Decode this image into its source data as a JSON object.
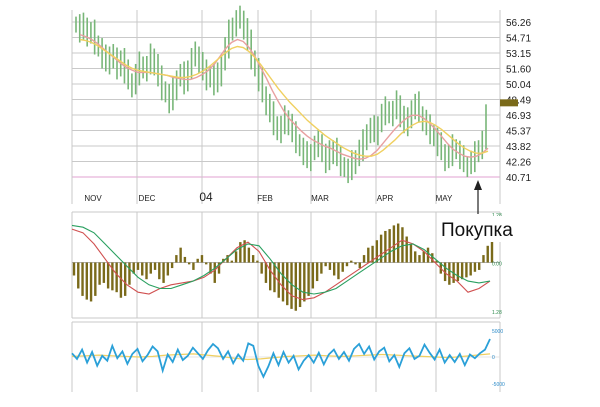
{
  "colors": {
    "price_bar": "#78b678",
    "ma_fast": "#e8a0a0",
    "ma_slow": "#f0d060",
    "macd_hist": "#7a6a1a",
    "macd_line": "#d05050",
    "signal_line": "#2aa060",
    "osc_line": "#2aa0d8",
    "osc_signal": "#f0d060",
    "grid": "#c9c9c9",
    "grid_bottom": "#e0a0d0",
    "callout_bg": "#ffffff"
  },
  "chart_data": [
    {
      "type": "ohlc",
      "panel": "price",
      "x_labels": [
        "NOV",
        "DEC",
        "04",
        "FEB",
        "MAR",
        "APR",
        "MAY"
      ],
      "y_ticks": [
        "56.26",
        "54.71",
        "53.15",
        "51.60",
        "50.04",
        "48.49",
        "46.93",
        "45.37",
        "43.82",
        "42.26",
        "40.71"
      ],
      "ylim": [
        40.71,
        56.26
      ],
      "grid": true,
      "series": [
        {
          "name": "close",
          "values": [
            56.0,
            55.3,
            55.9,
            54.9,
            55.2,
            54.1,
            53.6,
            52.7,
            52.1,
            53.0,
            52.4,
            51.6,
            52.6,
            51.2,
            50.3,
            49.8,
            51.0,
            52.0,
            51.4,
            51.8,
            52.8,
            52.0,
            50.6,
            49.5,
            49.0,
            48.2,
            49.5,
            50.6,
            51.0,
            50.1,
            51.6,
            52.6,
            53.0,
            52.2,
            51.2,
            50.5,
            51.0,
            50.0,
            50.9,
            52.2,
            53.7,
            55.2,
            55.9,
            56.4,
            56.6,
            55.6,
            54.2,
            52.6,
            51.6,
            50.4,
            49.0,
            48.0,
            47.0,
            46.0,
            45.2,
            45.8,
            46.6,
            46.0,
            45.0,
            44.2,
            43.6,
            43.0,
            42.4,
            43.2,
            43.8,
            44.2,
            43.0,
            42.2,
            43.1,
            43.6,
            42.6,
            41.9,
            41.5,
            41.2,
            42.1,
            42.6,
            43.4,
            44.2,
            45.2,
            45.6,
            45.0,
            46.0,
            47.0,
            47.5,
            46.9,
            47.3,
            48.1,
            46.8,
            45.9,
            46.4,
            47.6,
            48.0,
            47.0,
            46.4,
            45.7,
            45.1,
            44.6,
            43.9,
            43.2,
            42.4,
            42.9,
            43.7,
            43.3,
            42.6,
            42.0,
            41.8,
            42.3,
            43.0,
            43.6,
            44.3,
            46.7
          ]
        },
        {
          "name": "ma_fast",
          "values": [
            55.0,
            54.8,
            54.5,
            54.1,
            53.6,
            53.1,
            52.6,
            52.1,
            51.7,
            51.4,
            51.2,
            51.2,
            51.2,
            51.1,
            51.0,
            50.9,
            50.7,
            50.6,
            50.5,
            50.5,
            50.7,
            51.0,
            51.4,
            52.0,
            52.8,
            53.6,
            54.2,
            54.5,
            54.3,
            53.7,
            52.8,
            51.7,
            50.6,
            49.4,
            48.3,
            47.3,
            46.5,
            45.9,
            45.3,
            44.8,
            44.4,
            44.1,
            43.8,
            43.6,
            43.3,
            43.0,
            42.8,
            42.6,
            42.5,
            42.6,
            42.9,
            43.4,
            44.1,
            44.8,
            45.5,
            46.1,
            46.6,
            46.9,
            46.9,
            46.6,
            46.1,
            45.5,
            44.8,
            44.1,
            43.5,
            43.1,
            42.8,
            42.7,
            42.8,
            43.1,
            43.6
          ]
        },
        {
          "name": "ma_slow",
          "values": [
            54.5,
            54.4,
            54.2,
            53.9,
            53.5,
            53.1,
            52.7,
            52.3,
            51.9,
            51.6,
            51.4,
            51.3,
            51.2,
            51.1,
            51.0,
            50.9,
            50.8,
            50.7,
            50.7,
            50.8,
            51.0,
            51.3,
            51.7,
            52.2,
            52.7,
            53.2,
            53.6,
            53.8,
            53.7,
            53.3,
            52.7,
            52.0,
            51.2,
            50.4,
            49.6,
            48.9,
            48.2,
            47.6,
            47.0,
            46.4,
            45.9,
            45.4,
            44.9,
            44.5,
            44.1,
            43.7,
            43.4,
            43.1,
            42.9,
            42.8,
            42.8,
            43.0,
            43.4,
            43.9,
            44.4,
            45.0,
            45.5,
            45.9,
            46.2,
            46.3,
            46.2,
            45.9,
            45.5,
            45.0,
            44.5,
            44.0,
            43.6,
            43.3,
            43.1,
            43.1,
            43.3
          ]
        }
      ]
    },
    {
      "type": "bar",
      "panel": "macd",
      "y_ticks": [
        "1.28",
        "0.00",
        "1.28"
      ],
      "ylim": [
        -1.28,
        1.28
      ],
      "series": [
        {
          "name": "histogram",
          "values": [
            -0.35,
            -0.7,
            -0.9,
            -1.0,
            -1.05,
            -0.9,
            -0.6,
            -0.55,
            -0.7,
            -0.75,
            -0.8,
            -0.95,
            -0.9,
            -0.6,
            -0.3,
            -0.2,
            -0.35,
            -0.45,
            -0.3,
            -0.2,
            -0.45,
            -0.55,
            -0.35,
            -0.15,
            0.2,
            0.4,
            0.15,
            -0.05,
            -0.2,
            0.1,
            0.2,
            -0.05,
            -0.3,
            -0.55,
            -0.3,
            0.1,
            0.2,
            0.05,
            0.3,
            0.55,
            0.6,
            0.4,
            0.2,
            0.05,
            -0.3,
            -0.55,
            -0.75,
            -0.8,
            -0.95,
            -1.05,
            -1.15,
            -1.25,
            -1.3,
            -1.2,
            -1.05,
            -0.9,
            -0.7,
            -0.5,
            -0.3,
            -0.1,
            -0.2,
            -0.35,
            -0.45,
            -0.25,
            -0.1,
            0.05,
            -0.05,
            -0.15,
            0.2,
            0.4,
            0.45,
            0.6,
            0.75,
            0.85,
            0.9,
            1.0,
            1.05,
            0.95,
            0.7,
            0.5,
            0.3,
            0.2,
            0.3,
            0.4,
            0.25,
            0.05,
            -0.3,
            -0.5,
            -0.6,
            -0.55,
            -0.5,
            -0.45,
            -0.4,
            -0.35,
            -0.25,
            -0.2,
            0.2,
            0.45,
            0.7
          ]
        },
        {
          "name": "macd",
          "values": [
            0.9,
            0.8,
            0.5,
            0.1,
            -0.3,
            -0.6,
            -0.8,
            -0.85,
            -0.7,
            -0.6,
            -0.55,
            -0.5,
            -0.4,
            -0.2,
            0.1,
            0.4,
            0.55,
            0.3,
            -0.2,
            -0.6,
            -0.9,
            -1.0,
            -0.95,
            -0.8,
            -0.6,
            -0.4,
            -0.2,
            0.0,
            0.2,
            0.4,
            0.6,
            0.5,
            0.3,
            0.0,
            -0.3,
            -0.5,
            -0.8,
            -0.7,
            -0.5
          ]
        },
        {
          "name": "signal",
          "values": [
            1.0,
            0.95,
            0.8,
            0.5,
            0.2,
            -0.1,
            -0.4,
            -0.6,
            -0.7,
            -0.7,
            -0.6,
            -0.5,
            -0.35,
            -0.15,
            0.1,
            0.35,
            0.5,
            0.45,
            0.1,
            -0.3,
            -0.6,
            -0.8,
            -0.85,
            -0.8,
            -0.7,
            -0.5,
            -0.3,
            -0.1,
            0.1,
            0.3,
            0.45,
            0.5,
            0.35,
            0.1,
            -0.15,
            -0.35,
            -0.5,
            -0.55,
            -0.5
          ]
        }
      ]
    },
    {
      "type": "line",
      "panel": "oscillator",
      "y_ticks": [
        "5000",
        "0",
        "-5000"
      ],
      "ylim": [
        -5000,
        5000
      ],
      "series": [
        {
          "name": "oscillator",
          "values": [
            600,
            -300,
            1200,
            -900,
            800,
            -1400,
            200,
            -600,
            1800,
            -200,
            900,
            -1100,
            500,
            1300,
            -700,
            300,
            1700,
            900,
            -2200,
            400,
            -800,
            1200,
            -500,
            200,
            1500,
            600,
            -300,
            1100,
            2100,
            1400,
            -300,
            900,
            -1000,
            400,
            -600,
            2200,
            1800,
            -1400,
            -3200,
            -1500,
            600,
            -1300,
            800,
            -900,
            200,
            -2000,
            -600,
            300,
            -900,
            700,
            -1200,
            400,
            1200,
            -300,
            800,
            -600,
            1300,
            2100,
            500,
            1700,
            -400,
            900,
            1500,
            -700,
            300,
            -1600,
            600,
            1400,
            -300,
            200,
            2000,
            700,
            -400,
            1200,
            -900,
            300,
            -800,
            500,
            -1300,
            400,
            -200,
            600,
            1200,
            2900
          ]
        },
        {
          "name": "signal",
          "values": [
            100,
            200,
            300,
            200,
            100,
            0,
            100,
            300,
            400,
            500,
            300,
            100,
            -200,
            -400,
            -300,
            -100,
            100,
            200,
            300,
            200,
            100,
            200,
            300,
            400,
            300,
            200,
            100,
            0,
            -100,
            100,
            300,
            500
          ]
        }
      ]
    }
  ],
  "annotation": {
    "text": "Покупка",
    "arrow": "up"
  }
}
